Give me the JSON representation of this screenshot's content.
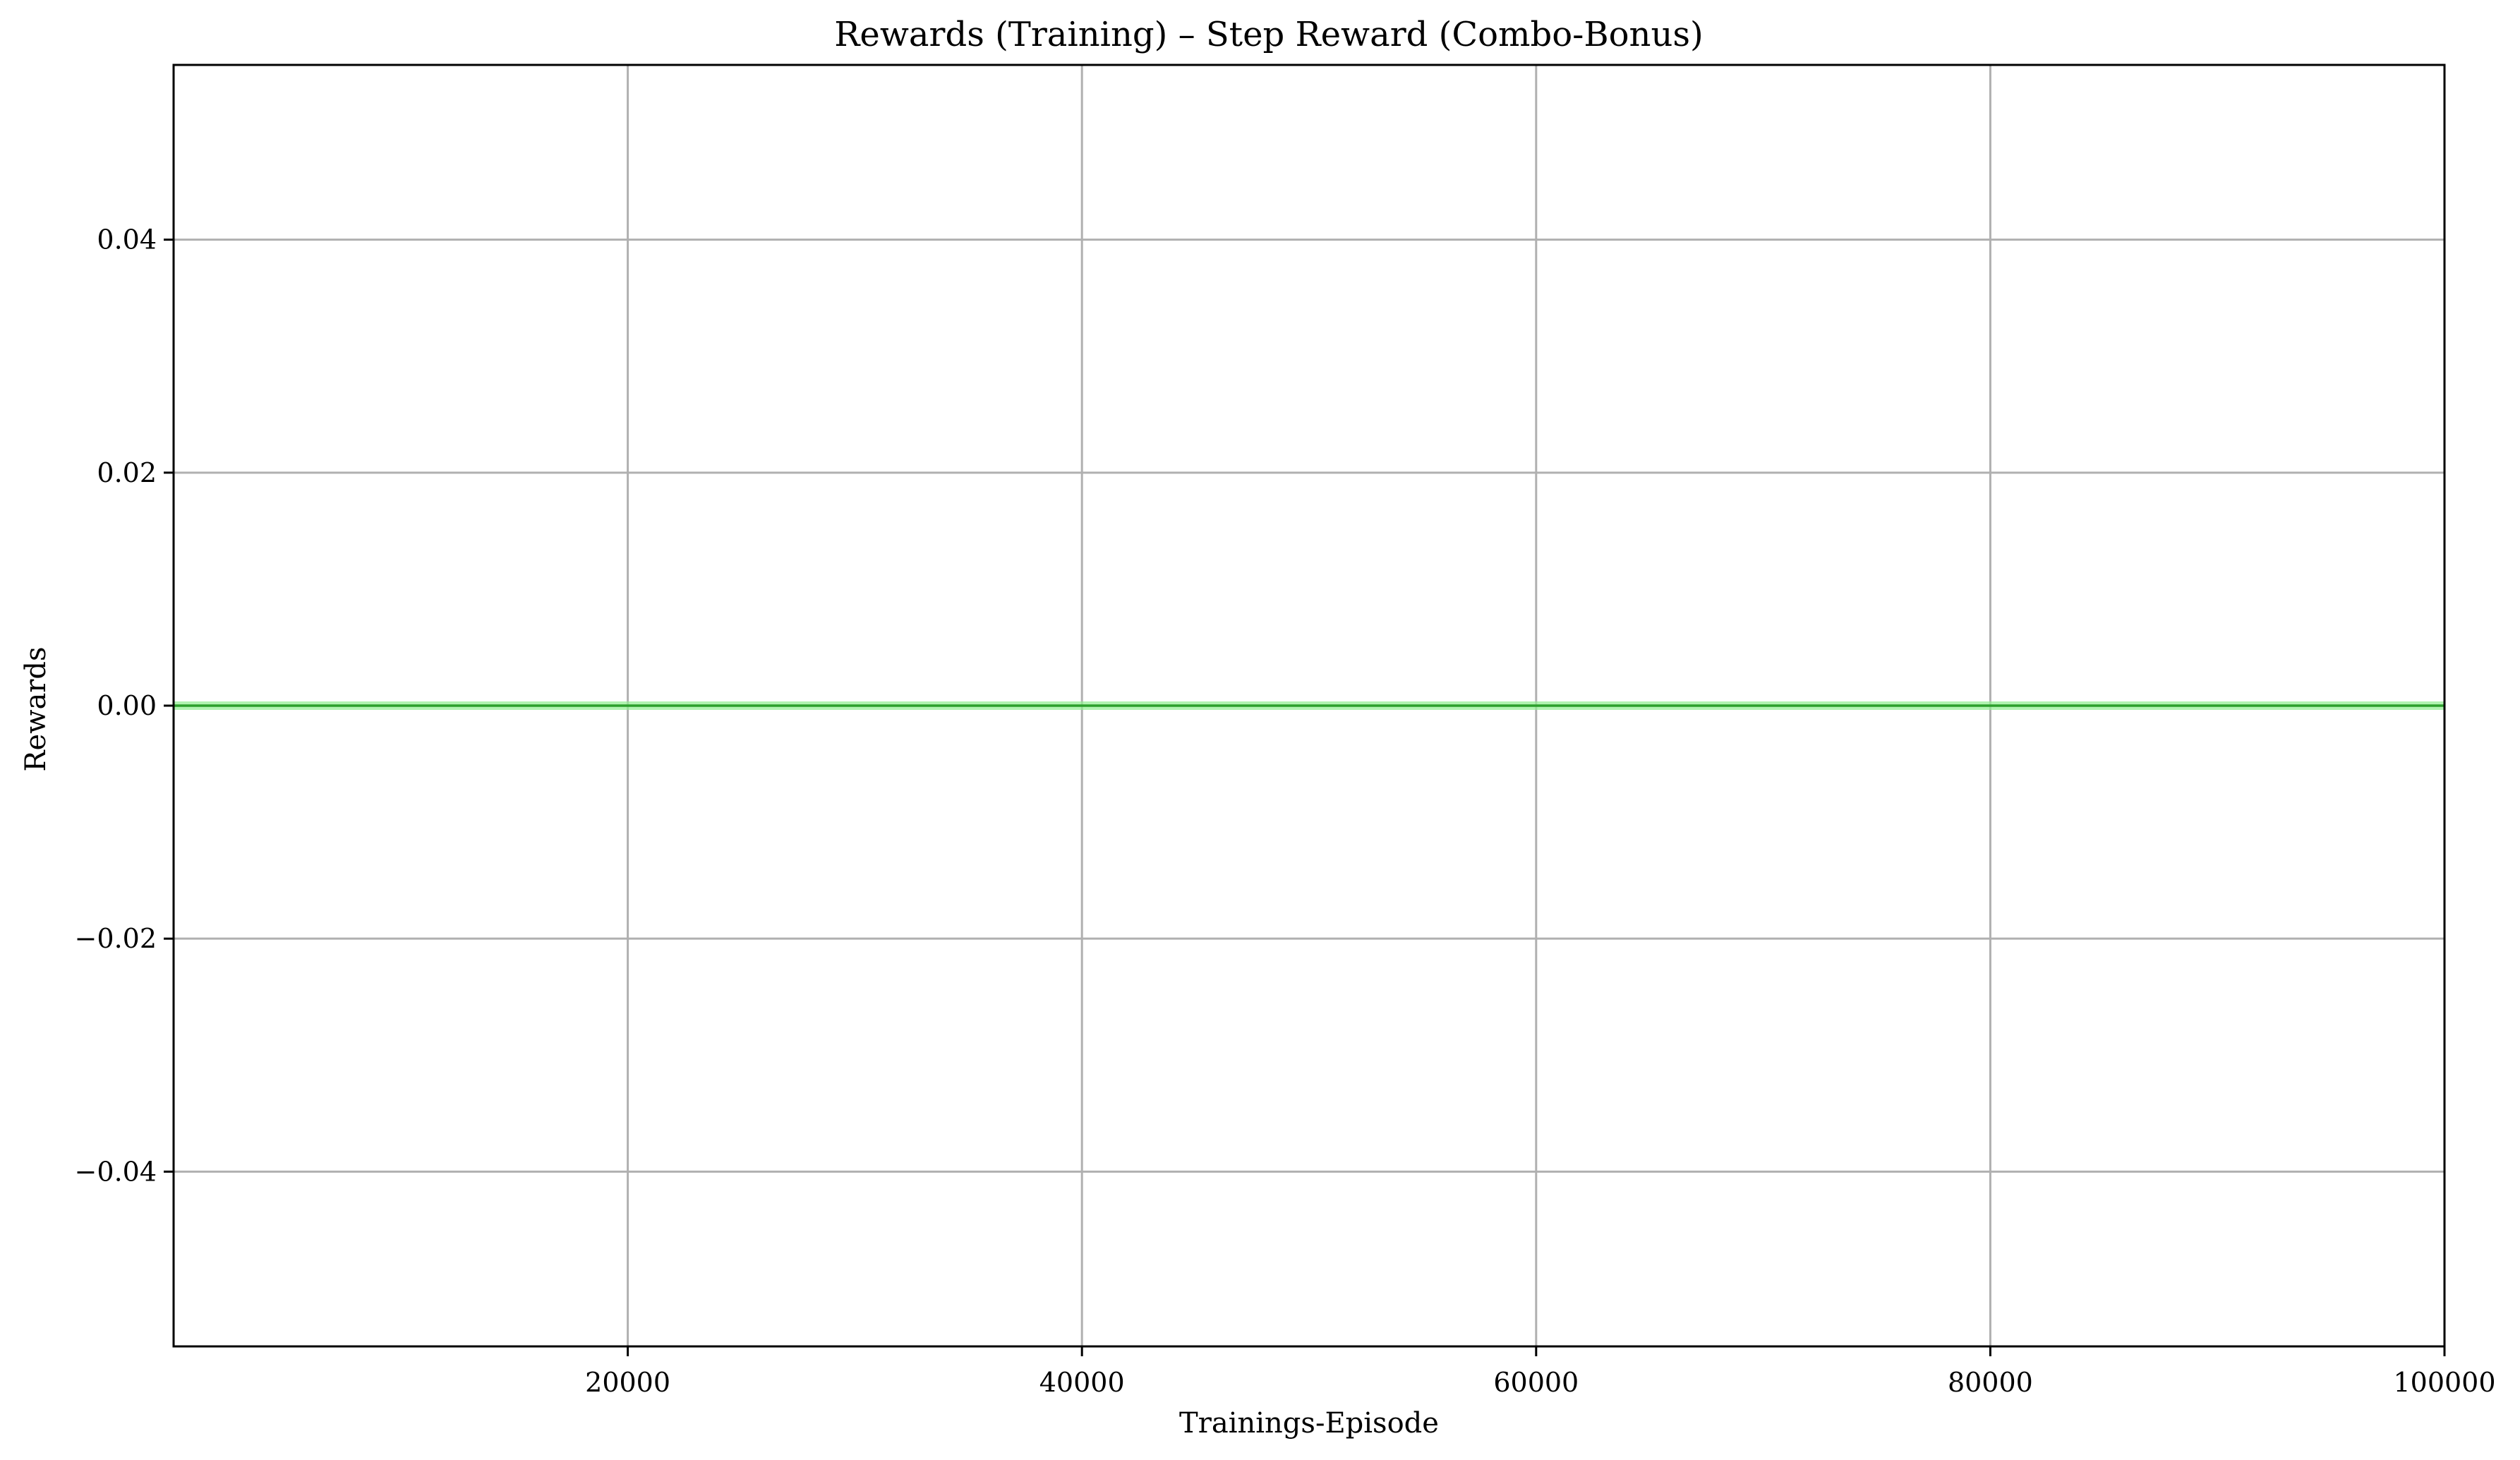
{
  "chart_data": {
    "type": "line",
    "title": "Rewards (Training) – Step Reward (Combo-Bonus)",
    "xlabel": "Trainings-Episode",
    "ylabel": "Rewards",
    "xlim": [
      0,
      100000
    ],
    "ylim": [
      -0.055,
      0.055
    ],
    "xticks": [
      20000,
      40000,
      60000,
      80000,
      100000
    ],
    "xtick_labels": [
      "20000",
      "40000",
      "60000",
      "80000",
      "100000"
    ],
    "yticks": [
      0.04,
      0.02,
      0.0,
      -0.02,
      -0.04
    ],
    "ytick_labels": [
      "0.04",
      "0.02",
      "0.00",
      "−0.02",
      "−0.04"
    ],
    "grid": true,
    "series": [
      {
        "color": "#2ca02c",
        "x": [
          0,
          100000
        ],
        "y": [
          0.0,
          0.0
        ]
      }
    ]
  },
  "colors": {
    "grid": "#b0b0b0",
    "axes": "#000000",
    "line": "#2ca02c",
    "band": "#90ee90"
  }
}
